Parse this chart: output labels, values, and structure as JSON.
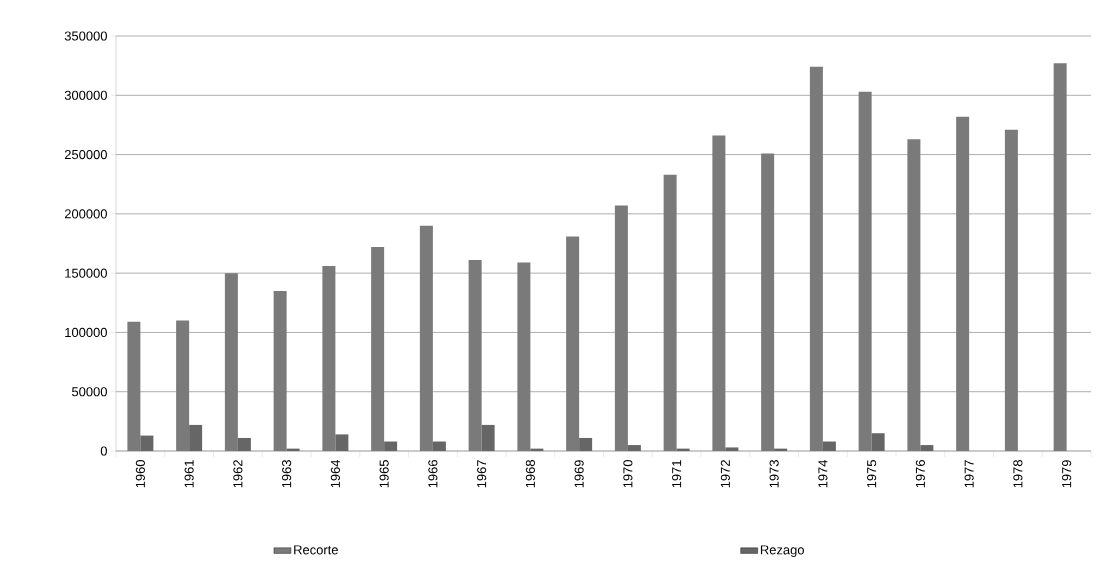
{
  "chart_data": {
    "type": "bar",
    "categories": [
      "1960",
      "1961",
      "1962",
      "1963",
      "1964",
      "1965",
      "1966",
      "1967",
      "1968",
      "1969",
      "1970",
      "1971",
      "1972",
      "1973",
      "1974",
      "1975",
      "1976",
      "1977",
      "1978",
      "1979"
    ],
    "series": [
      {
        "name": "Recorte",
        "color": "#7a7a7a",
        "values": [
          109000,
          110000,
          150000,
          135000,
          156000,
          172000,
          190000,
          161000,
          159000,
          181000,
          207000,
          233000,
          266000,
          251000,
          324000,
          303000,
          263000,
          282000,
          271000,
          327000
        ]
      },
      {
        "name": "Rezago",
        "color": "#666666",
        "values": [
          13000,
          22000,
          11000,
          2000,
          14000,
          8000,
          8000,
          22000,
          2000,
          11000,
          5000,
          2000,
          3000,
          2000,
          8000,
          15000,
          5000,
          0,
          0,
          0
        ]
      }
    ],
    "ylim": [
      0,
      350000
    ],
    "yticks": [
      0,
      50000,
      100000,
      150000,
      200000,
      250000,
      300000,
      350000
    ],
    "grid": "y",
    "legend": "bottom"
  }
}
